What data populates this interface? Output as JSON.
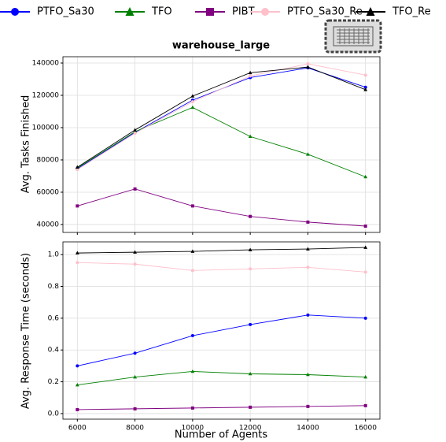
{
  "chart_data": [
    {
      "type": "line",
      "title": "warehouse_large",
      "ylabel": "Avg. Tasks Finished",
      "x": [
        6000,
        8000,
        10000,
        12000,
        14000,
        16000
      ],
      "xlim": [
        5500,
        16500
      ],
      "xticks": [
        6000,
        8000,
        10000,
        12000,
        14000,
        16000
      ],
      "ylim": [
        35100,
        143900
      ],
      "yticks": [
        40000,
        60000,
        80000,
        100000,
        120000,
        140000
      ],
      "grid": true,
      "legend": "top",
      "series": [
        {
          "name": "PTFO_Sa30",
          "color": "#0000ff",
          "marker": "circle",
          "values": [
            74500,
            97000,
            117000,
            131000,
            137000,
            125000
          ]
        },
        {
          "name": "TFO",
          "color": "#008000",
          "marker": "triangle",
          "values": [
            75000,
            97500,
            112500,
            94500,
            83500,
            69500
          ]
        },
        {
          "name": "PIBT",
          "color": "#800080",
          "marker": "square",
          "values": [
            51500,
            62000,
            51500,
            45000,
            41500,
            39000
          ]
        },
        {
          "name": "PTFO_Sa30_Re",
          "color": "#ffc0cb",
          "marker": "circle",
          "values": [
            74000,
            96500,
            116000,
            132000,
            139500,
            132500
          ]
        },
        {
          "name": "TFO_Re",
          "color": "#000000",
          "marker": "triangle",
          "values": [
            75500,
            98500,
            119500,
            134000,
            137500,
            123500
          ]
        }
      ]
    },
    {
      "type": "line",
      "ylabel": "Avg. Response Time (seconds)",
      "xlabel": "Number of Agents",
      "x": [
        6000,
        8000,
        10000,
        12000,
        14000,
        16000
      ],
      "xlim": [
        5500,
        16500
      ],
      "xticks": [
        6000,
        8000,
        10000,
        12000,
        14000,
        16000
      ],
      "ylim": [
        -0.035,
        1.08
      ],
      "yticks": [
        {
          "value": 0,
          "label": "0.0"
        },
        0.2,
        0.4,
        0.6,
        0.8,
        {
          "value": 1,
          "label": "1.0"
        }
      ],
      "grid": true,
      "series": [
        {
          "color": "#0000ff",
          "marker": "circle",
          "values": [
            0.3,
            0.38,
            0.49,
            0.56,
            0.62,
            0.6
          ]
        },
        {
          "color": "#008000",
          "marker": "triangle",
          "values": [
            0.18,
            0.23,
            0.265,
            0.25,
            0.245,
            0.23
          ]
        },
        {
          "color": "#800080",
          "marker": "square",
          "values": [
            0.025,
            0.03,
            0.035,
            0.04,
            0.045,
            0.05
          ]
        },
        {
          "color": "#ffc0cb",
          "marker": "circle",
          "values": [
            0.95,
            0.94,
            0.9,
            0.91,
            0.92,
            0.89
          ]
        },
        {
          "color": "#000000",
          "marker": "triangle",
          "values": [
            1.01,
            1.015,
            1.02,
            1.03,
            1.035,
            1.045
          ]
        }
      ]
    }
  ]
}
